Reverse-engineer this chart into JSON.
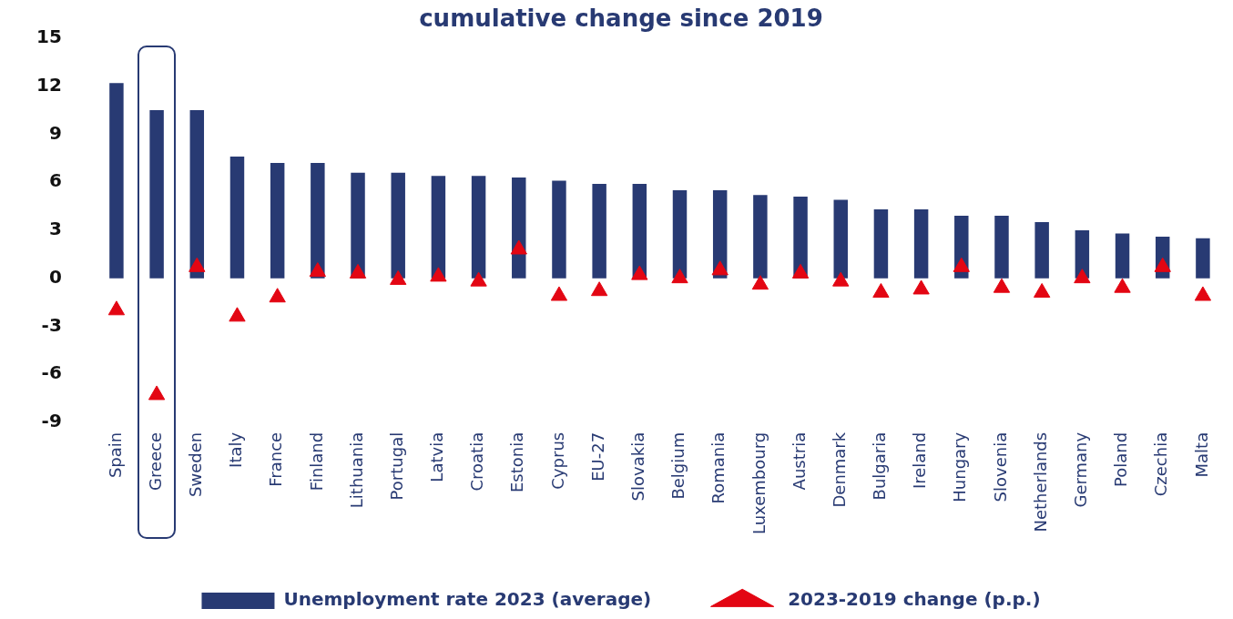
{
  "chart_data": {
    "type": "bar",
    "title": "cumulative change since 2019",
    "categories": [
      "Spain",
      "Greece",
      "Sweden",
      "Italy",
      "France",
      "Finland",
      "Lithuania",
      "Portugal",
      "Latvia",
      "Croatia",
      "Estonia",
      "Cyprus",
      "EU-27",
      "Slovakia",
      "Belgium",
      "Romania",
      "Luxembourg",
      "Austria",
      "Denmark",
      "Bulgaria",
      "Ireland",
      "Hungary",
      "Slovenia",
      "Netherlands",
      "Germany",
      "Poland",
      "Czechia",
      "Malta"
    ],
    "series": [
      {
        "name": "Unemployment rate 2023 (average)",
        "color": "#283a73",
        "values": [
          12.2,
          10.5,
          10.5,
          7.6,
          7.2,
          7.2,
          6.6,
          6.6,
          6.4,
          6.4,
          6.3,
          6.1,
          5.9,
          5.9,
          5.5,
          5.5,
          5.2,
          5.1,
          4.9,
          4.3,
          4.3,
          3.9,
          3.9,
          3.5,
          3.0,
          2.8,
          2.6,
          2.5
        ]
      },
      {
        "name": "2023-2019 change (p.p.)",
        "type": "scatter",
        "color": "#e30613",
        "values": [
          -2.0,
          -7.3,
          0.7,
          -2.4,
          -1.2,
          0.4,
          0.3,
          -0.1,
          0.1,
          -0.2,
          1.8,
          -1.1,
          -0.8,
          0.2,
          0.0,
          0.5,
          -0.4,
          0.3,
          -0.2,
          -0.9,
          -0.7,
          0.7,
          -0.6,
          -0.9,
          0.0,
          -0.6,
          0.7,
          -1.1
        ]
      }
    ],
    "marker": "triangle",
    "ylim": [
      -9,
      15
    ],
    "yticks": [
      15,
      12,
      9,
      6,
      3,
      0,
      -3,
      -6,
      -9
    ],
    "legend": "bottom"
  }
}
